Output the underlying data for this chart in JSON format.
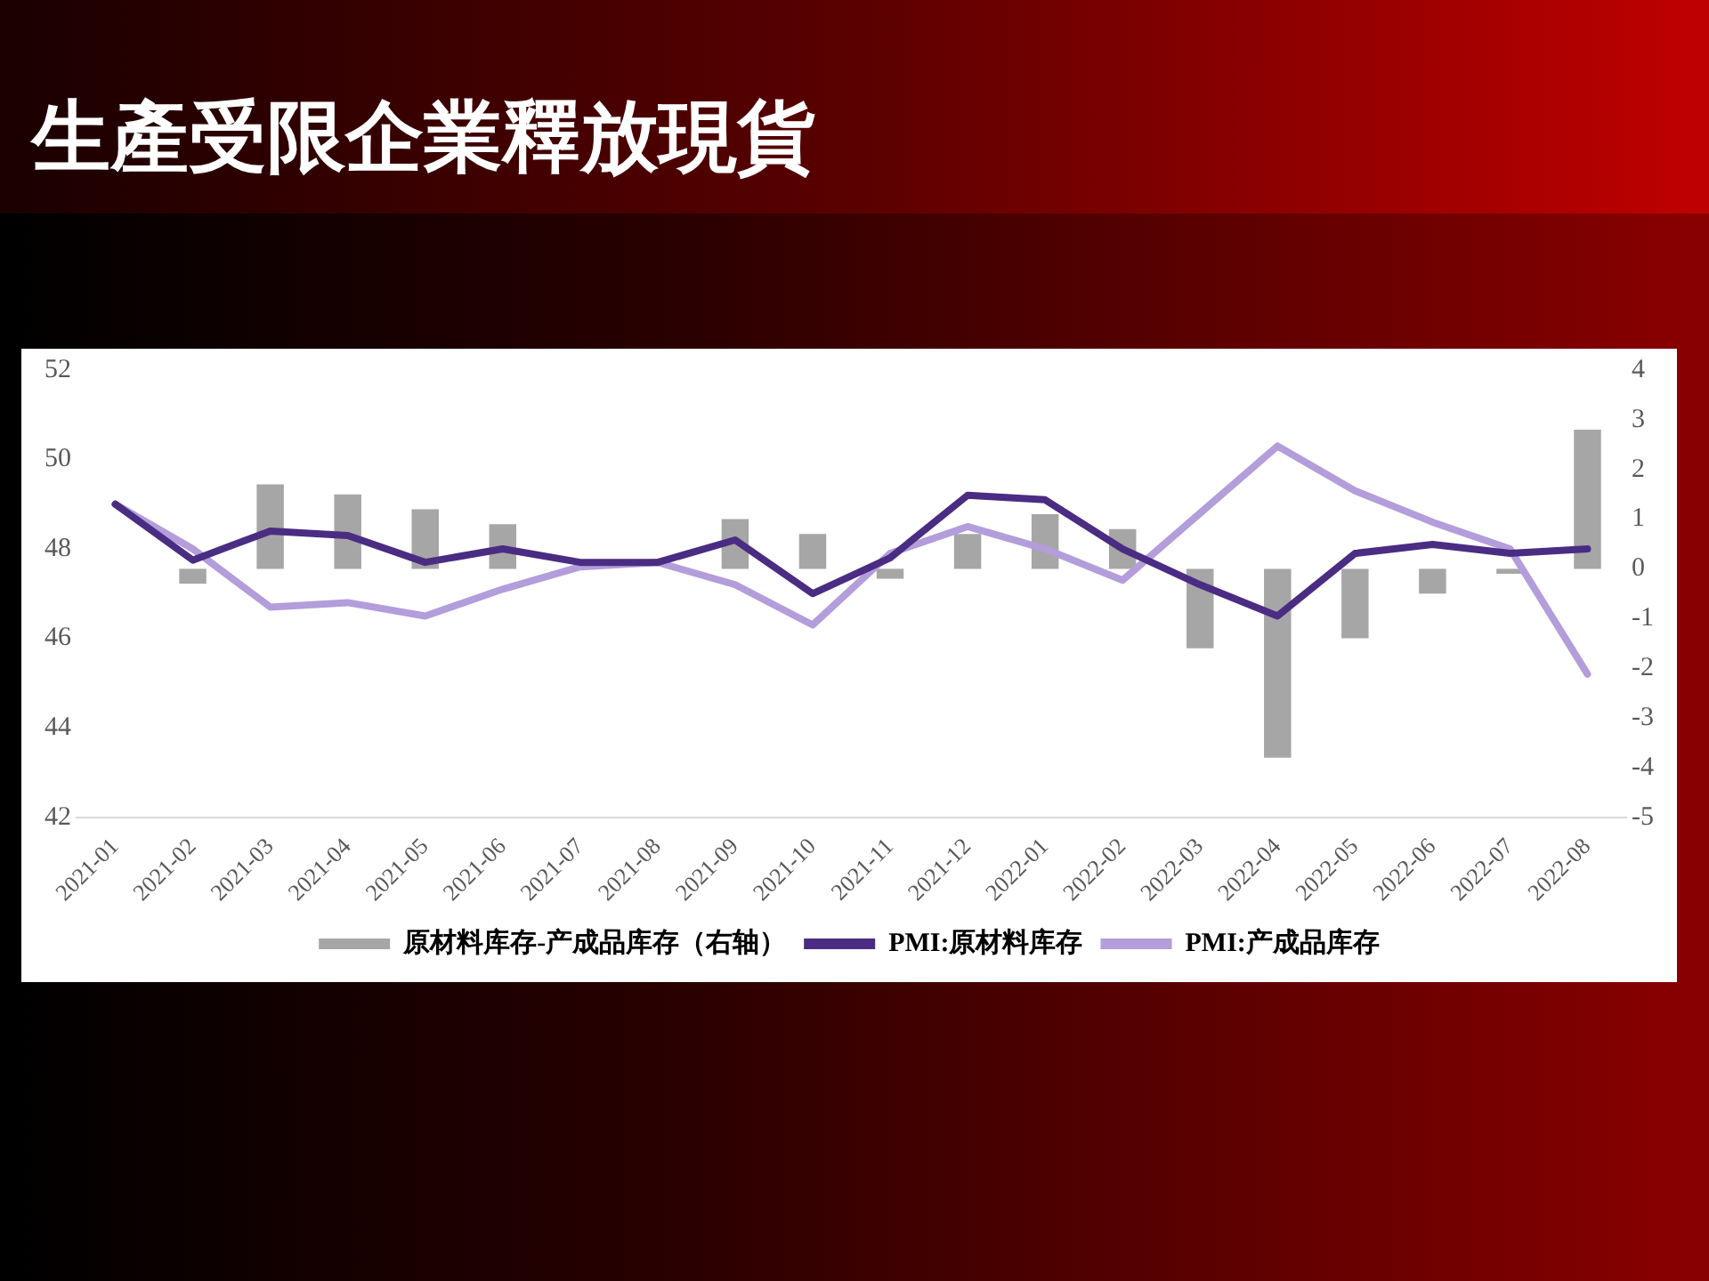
{
  "chart_data": {
    "type": "line",
    "title": "生產受限企業釋放現貨",
    "categories": [
      "2021-01",
      "2021-02",
      "2021-03",
      "2021-04",
      "2021-05",
      "2021-06",
      "2021-07",
      "2021-08",
      "2021-09",
      "2021-10",
      "2021-11",
      "2021-12",
      "2022-01",
      "2022-02",
      "2022-03",
      "2022-04",
      "2022-05",
      "2022-06",
      "2022-07",
      "2022-08"
    ],
    "series": [
      {
        "name": "原材料库存-产成品库存（右轴）",
        "type": "bar",
        "axis": "y2",
        "color": "#a6a6a6",
        "values": [
          null,
          -0.3,
          1.7,
          1.5,
          1.2,
          0.9,
          null,
          null,
          1.0,
          0.7,
          -0.2,
          0.7,
          1.1,
          0.8,
          -1.6,
          -3.8,
          -1.4,
          -0.5,
          -0.1,
          2.8
        ]
      },
      {
        "name": "PMI:原材料库存",
        "color": "#4b2c83",
        "values": [
          49.0,
          47.75,
          48.4,
          48.3,
          47.7,
          48.0,
          47.7,
          47.7,
          48.2,
          47.0,
          47.8,
          49.2,
          49.1,
          48.0,
          47.2,
          46.5,
          47.9,
          48.1,
          47.9,
          48.0
        ]
      },
      {
        "name": "PMI:产成品库存",
        "color": "#b39ddb",
        "values": [
          49.0,
          48.0,
          46.7,
          46.8,
          46.5,
          47.1,
          47.6,
          47.7,
          47.2,
          46.3,
          47.9,
          48.5,
          48.0,
          47.3,
          48.8,
          50.3,
          49.3,
          48.6,
          48.0,
          45.2
        ]
      }
    ],
    "ylim": [
      42,
      52
    ],
    "yticks": [
      42,
      44,
      46,
      48,
      50,
      52
    ],
    "y2lim": [
      -5,
      4
    ],
    "y2ticks": [
      -5,
      -4,
      -3,
      -2,
      -1,
      0,
      1,
      2,
      3,
      4
    ],
    "grid": false,
    "legend": "bottom",
    "marker": "none",
    "line_style": "solid"
  }
}
